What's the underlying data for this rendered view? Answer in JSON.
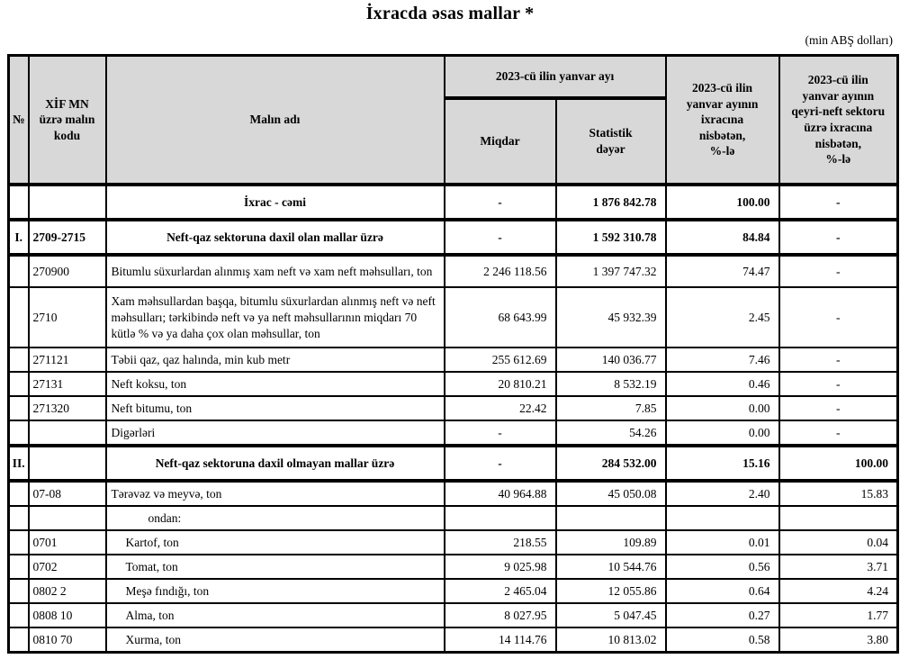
{
  "page": {
    "title": "İxracda əsas mallar *",
    "unit_note": "(min ABŞ dolları)"
  },
  "colors": {
    "header_bg": "#d8d8d8",
    "border": "#000000",
    "text": "#000000",
    "background": "#ffffff"
  },
  "table": {
    "headers": {
      "no": "№",
      "code": "XİF MN\nüzrə malın\nkodu",
      "name": "Malın adı",
      "period_group": "2023-cü ilin yanvar ayı",
      "quantity": "Miqdar",
      "stat_value": "Statistik\ndəyər",
      "share_total": "2023-cü ilin\nyanvar ayının\nixracına\nnisbətən,\n%-lə",
      "share_nonoil": "2023-cü ilin\nyanvar ayının\nqeyri-neft sektoru\nüzrə ixracına\nnisbətən,\n%-lə"
    },
    "rows": [
      {
        "style": "total",
        "no": "",
        "code": "",
        "name": "İxrac - cəmi",
        "qty": "-",
        "value": "1 876 842.78",
        "share": "100.00",
        "nonoil": "-"
      },
      {
        "style": "section",
        "no": "I.",
        "code": "2709-2715",
        "name": "Neft-qaz sektoruna daxil olan mallar üzrə",
        "qty": "-",
        "value": "1 592 310.78",
        "share": "84.84",
        "nonoil": "-"
      },
      {
        "style": "item",
        "no": "",
        "code": "270900",
        "name": "Bitumlu süxurlardan alınmış xam neft və xam neft məhsulları, ton",
        "qty": "2 246 118.56",
        "value": "1 397 747.32",
        "share": "74.47",
        "nonoil": "-"
      },
      {
        "style": "item",
        "no": "",
        "code": "2710",
        "name": "Xam məhsullardan başqa, bitumlu süxurlardan alınmış neft və neft məhsulları; tərkibində neft və ya neft məhsullarının miqdarı 70 kütlə % və ya daha çox olan məhsullar, ton",
        "qty": "68 643.99",
        "value": "45 932.39",
        "share": "2.45",
        "nonoil": "-"
      },
      {
        "style": "item",
        "no": "",
        "code": "271121",
        "name": "Təbii qaz, qaz halında, min kub metr",
        "qty": "255 612.69",
        "value": "140 036.77",
        "share": "7.46",
        "nonoil": "-"
      },
      {
        "style": "item",
        "no": "",
        "code": "27131",
        "name": "Neft koksu, ton",
        "qty": "20 810.21",
        "value": "8 532.19",
        "share": "0.46",
        "nonoil": "-"
      },
      {
        "style": "item",
        "no": "",
        "code": "271320",
        "name": "Neft bitumu, ton",
        "qty": "22.42",
        "value": "7.85",
        "share": "0.00",
        "nonoil": "-"
      },
      {
        "style": "item",
        "no": "",
        "code": "",
        "name": "Digərləri",
        "qty": "-",
        "value": "54.26",
        "share": "0.00",
        "nonoil": "-"
      },
      {
        "style": "section",
        "no": "II.",
        "code": "",
        "name": "Neft-qaz sektoruna daxil olmayan mallar üzrə",
        "qty": "-",
        "value": "284 532.00",
        "share": "15.16",
        "nonoil": "100.00"
      },
      {
        "style": "item",
        "no": "",
        "code": "07-08",
        "name": "Tərəvəz və meyvə, ton",
        "qty": "40 964.88",
        "value": "45 050.08",
        "share": "2.40",
        "nonoil": "15.83"
      },
      {
        "style": "sublabel",
        "no": "",
        "code": "",
        "name": "ondan:",
        "qty": "",
        "value": "",
        "share": "",
        "nonoil": ""
      },
      {
        "style": "subitem",
        "no": "",
        "code": "0701",
        "name": "Kartof, ton",
        "qty": "218.55",
        "value": "109.89",
        "share": "0.01",
        "nonoil": "0.04"
      },
      {
        "style": "subitem",
        "no": "",
        "code": "0702",
        "name": "Tomat, ton",
        "qty": "9 025.98",
        "value": "10 544.76",
        "share": "0.56",
        "nonoil": "3.71"
      },
      {
        "style": "subitem",
        "no": "",
        "code": "0802 2",
        "name": "Meşə fındığı, ton",
        "qty": "2 465.04",
        "value": "12 055.86",
        "share": "0.64",
        "nonoil": "4.24"
      },
      {
        "style": "subitem",
        "no": "",
        "code": "0808 10",
        "name": "Alma, ton",
        "qty": "8 027.95",
        "value": "5 047.45",
        "share": "0.27",
        "nonoil": "1.77"
      },
      {
        "style": "subitem",
        "no": "",
        "code": "0810 70",
        "name": "Xurma, ton",
        "qty": "14 114.76",
        "value": "10 813.02",
        "share": "0.58",
        "nonoil": "3.80"
      }
    ]
  }
}
